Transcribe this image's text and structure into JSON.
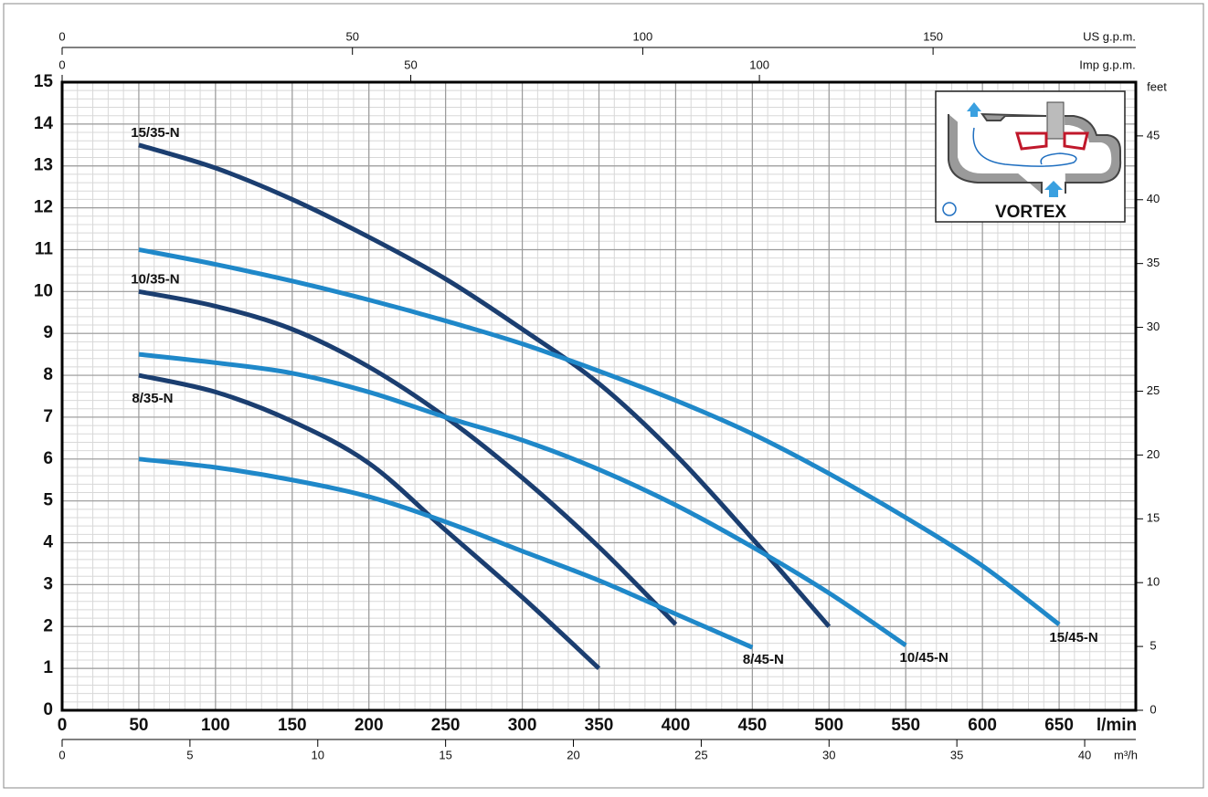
{
  "chart_data": {
    "type": "line",
    "xlabel": "l/min",
    "xlim": [
      0,
      700
    ],
    "xticks": [
      0,
      50,
      100,
      150,
      200,
      250,
      300,
      350,
      400,
      450,
      500,
      550,
      600,
      650
    ],
    "ylim": [
      0,
      15
    ],
    "yticks": [
      0,
      1,
      2,
      3,
      4,
      5,
      6,
      7,
      8,
      9,
      10,
      11,
      12,
      13,
      14,
      15
    ],
    "grid": true,
    "x2": {
      "label": "m³/h",
      "lim": [
        0,
        42
      ],
      "ticks": [
        0,
        5,
        10,
        15,
        20,
        25,
        30,
        35,
        40
      ]
    },
    "x3": {
      "label": "US g.p.m.",
      "lim": [
        0,
        184.92
      ],
      "ticks": [
        0,
        50,
        100,
        150
      ]
    },
    "x4": {
      "label": "Imp g.p.m.",
      "lim": [
        0,
        153.98
      ],
      "ticks": [
        0,
        50,
        100
      ]
    },
    "y2label": "feet",
    "y2lim": [
      0,
      49.21
    ],
    "y2ticks": [
      0,
      5,
      10,
      15,
      20,
      25,
      30,
      35,
      40,
      45
    ],
    "inset_label": "VORTEX",
    "series": [
      {
        "name": "15/35-N",
        "color": "#1b3e70",
        "x": [
          50,
          100,
          150,
          200,
          250,
          300,
          350,
          400,
          450,
          500
        ],
        "values": [
          13.5,
          12.95,
          12.2,
          11.3,
          10.3,
          9.1,
          7.8,
          6.1,
          4.1,
          2.0
        ]
      },
      {
        "name": "10/35-N",
        "color": "#1b3e70",
        "x": [
          50,
          100,
          150,
          200,
          250,
          300,
          350,
          400
        ],
        "values": [
          10.0,
          9.65,
          9.1,
          8.2,
          7.0,
          5.55,
          3.9,
          2.05
        ]
      },
      {
        "name": "8/35-N",
        "color": "#1b3e70",
        "x": [
          50,
          100,
          150,
          200,
          250,
          300,
          350
        ],
        "values": [
          8.0,
          7.6,
          6.9,
          5.9,
          4.3,
          2.7,
          1.0
        ]
      },
      {
        "name": "8/45-N",
        "color": "#1f88c9",
        "x": [
          50,
          100,
          150,
          200,
          250,
          300,
          350,
          400,
          450
        ],
        "values": [
          6.0,
          5.8,
          5.5,
          5.1,
          4.5,
          3.8,
          3.1,
          2.3,
          1.5
        ]
      },
      {
        "name": "10/45-N",
        "color": "#1f88c9",
        "x": [
          50,
          100,
          150,
          200,
          250,
          300,
          350,
          400,
          450,
          500,
          550
        ],
        "values": [
          8.5,
          8.3,
          8.05,
          7.6,
          7.0,
          6.45,
          5.75,
          4.9,
          3.9,
          2.8,
          1.55
        ]
      },
      {
        "name": "15/45-N",
        "color": "#1f88c9",
        "x": [
          50,
          100,
          150,
          200,
          250,
          300,
          350,
          400,
          450,
          500,
          550,
          600,
          650
        ],
        "values": [
          11.0,
          10.65,
          10.25,
          9.8,
          9.3,
          8.75,
          8.1,
          7.4,
          6.6,
          5.65,
          4.6,
          3.45,
          2.05
        ]
      }
    ]
  }
}
